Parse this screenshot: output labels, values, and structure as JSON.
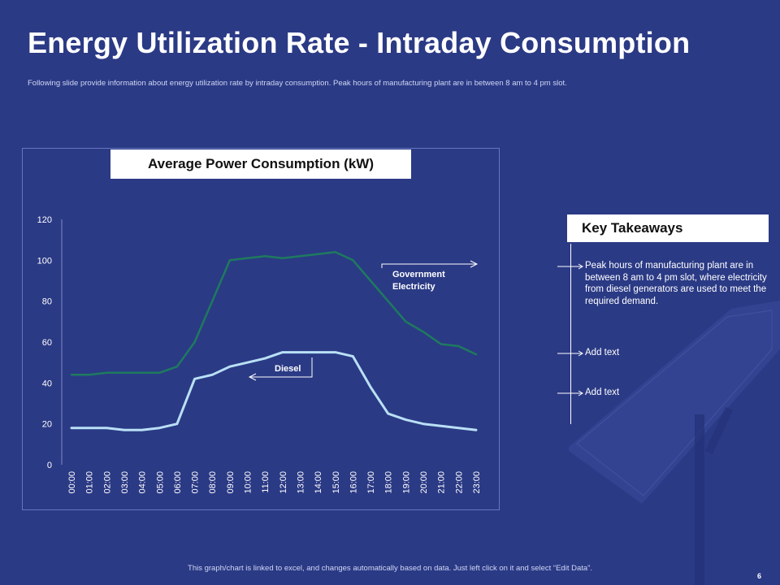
{
  "header": {
    "title": "Energy Utilization Rate - Intraday Consumption",
    "subtitle": "Following slide provide information about energy utilization rate by intraday consumption. Peak hours of manufacturing  plant are in between 8 am to 4 pm slot."
  },
  "chart_data": {
    "type": "line",
    "title": "Average Power Consumption (kW)",
    "categories": [
      "00:00",
      "01:00",
      "02:00",
      "03:00",
      "04:00",
      "05:00",
      "06:00",
      "07:00",
      "08:00",
      "09:00",
      "10:00",
      "11:00",
      "12:00",
      "13:00",
      "14:00",
      "15:00",
      "16:00",
      "17:00",
      "18:00",
      "19:00",
      "20:00",
      "21:00",
      "22:00",
      "23:00"
    ],
    "yticks": [
      "0",
      "20",
      "40",
      "60",
      "80",
      "100",
      "120"
    ],
    "ylim": [
      0,
      120
    ],
    "series": [
      {
        "name": "Government Electricity",
        "label": "Government Electricity",
        "color": "#1e7a5e",
        "values": [
          44,
          44,
          45,
          45,
          45,
          45,
          48,
          60,
          80,
          100,
          101,
          102,
          101,
          102,
          103,
          104,
          100,
          90,
          80,
          70,
          65,
          59,
          58,
          54
        ]
      },
      {
        "name": "Diesel",
        "label": "Diesel",
        "color": "#b9e0f5",
        "values": [
          18,
          18,
          18,
          17,
          17,
          18,
          20,
          42,
          44,
          48,
          50,
          52,
          55,
          55,
          55,
          55,
          53,
          38,
          25,
          22,
          20,
          19,
          18,
          17
        ]
      }
    ],
    "annotations": [
      "Government Electricity",
      "Diesel"
    ]
  },
  "takeaways": {
    "title": "Key Takeaways",
    "items": [
      "Peak hours of manufacturing  plant are in between 8 am to 4 pm slot, where electricity from diesel generators are used to meet the required demand.",
      "Add text",
      "Add text"
    ]
  },
  "footer": {
    "note": "This graph/chart is linked to excel, and changes automatically based on data. Just left click on it and select “Edit Data”.",
    "page": "6"
  },
  "colors": {
    "background": "#2b3a85",
    "accent": "#ffffff"
  }
}
